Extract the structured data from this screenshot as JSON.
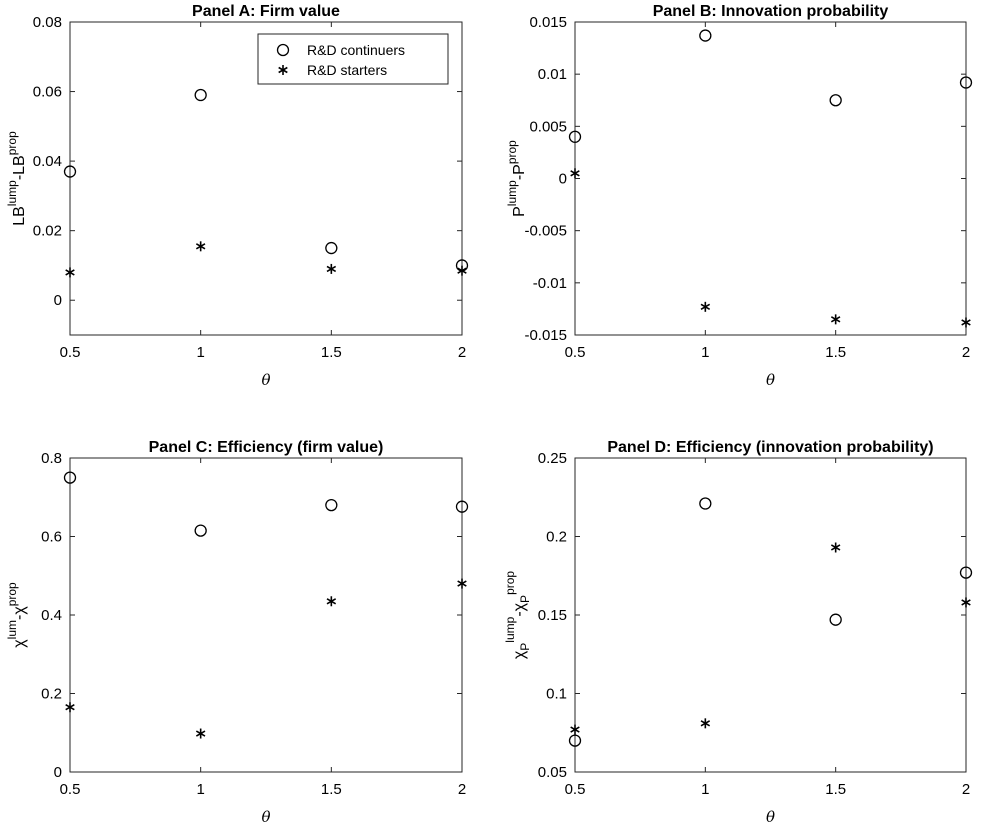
{
  "chart_data": [
    {
      "type": "scatter",
      "title": "Panel A: Firm value",
      "xlabel": "θ",
      "ylabel": {
        "base": "LB",
        "sup1": "lump",
        "mid": "-LB",
        "sup2": "prop"
      },
      "xlim": [
        0.5,
        2
      ],
      "ylim": [
        -0.01,
        0.08
      ],
      "xticks": [
        0.5,
        1,
        1.5,
        2
      ],
      "xtick_labels": [
        "0.5",
        "1",
        "1.5",
        "2"
      ],
      "yticks": [
        0,
        0.02,
        0.04,
        0.06,
        0.08
      ],
      "ytick_labels": [
        "0",
        "0.02",
        "0.04",
        "0.06",
        "0.08"
      ],
      "x": [
        0.5,
        1,
        1.5,
        2
      ],
      "series": [
        {
          "name": "R&D continuers",
          "marker": "circle",
          "values": [
            0.037,
            0.059,
            0.015,
            0.01
          ]
        },
        {
          "name": "R&D starters",
          "marker": "asterisk",
          "values": [
            0.008,
            0.0155,
            0.009,
            0.0085
          ]
        }
      ],
      "legend": "top-right"
    },
    {
      "type": "scatter",
      "title": "Panel B: Innovation probability",
      "xlabel": "θ",
      "ylabel": {
        "base": "P",
        "sup1": "lump",
        "mid": "-P",
        "sup2": "prop"
      },
      "xlim": [
        0.5,
        2
      ],
      "ylim": [
        -0.015,
        0.015
      ],
      "xticks": [
        0.5,
        1,
        1.5,
        2
      ],
      "xtick_labels": [
        "0.5",
        "1",
        "1.5",
        "2"
      ],
      "yticks": [
        -0.015,
        -0.01,
        -0.005,
        0,
        0.005,
        0.01,
        0.015
      ],
      "ytick_labels": [
        "-0.015",
        "-0.01",
        "-0.005",
        "0",
        "0.005",
        "0.01",
        "0.015"
      ],
      "x": [
        0.5,
        1,
        1.5,
        2
      ],
      "series": [
        {
          "name": "R&D continuers",
          "marker": "circle",
          "values": [
            0.004,
            0.0137,
            0.0075,
            0.0092
          ]
        },
        {
          "name": "R&D starters",
          "marker": "asterisk",
          "values": [
            0.0005,
            -0.0123,
            -0.0135,
            -0.0138
          ]
        }
      ]
    },
    {
      "type": "scatter",
      "title": "Panel C: Efficiency (firm value)",
      "xlabel": "θ",
      "ylabel": {
        "base": "χ",
        "sup1": "lum",
        "mid": "-χ",
        "sup2": "prop"
      },
      "xlim": [
        0.5,
        2
      ],
      "ylim": [
        0,
        0.8
      ],
      "xticks": [
        0.5,
        1,
        1.5,
        2
      ],
      "xtick_labels": [
        "0.5",
        "1",
        "1.5",
        "2"
      ],
      "yticks": [
        0,
        0.2,
        0.4,
        0.6,
        0.8
      ],
      "ytick_labels": [
        "0",
        "0.2",
        "0.4",
        "0.6",
        "0.8"
      ],
      "x": [
        0.5,
        1,
        1.5,
        2
      ],
      "series": [
        {
          "name": "R&D continuers",
          "marker": "circle",
          "values": [
            0.75,
            0.615,
            0.68,
            0.676
          ]
        },
        {
          "name": "R&D starters",
          "marker": "asterisk",
          "values": [
            0.165,
            0.098,
            0.435,
            0.48
          ]
        }
      ]
    },
    {
      "type": "scatter",
      "title": "Panel D: Efficiency (innovation probability)",
      "xlabel": "θ",
      "ylabel": {
        "base": "χ",
        "sub": "P",
        "sup1": "lump",
        "mid": "-χ",
        "sub2": "P",
        "sup2": "prop"
      },
      "xlim": [
        0.5,
        2
      ],
      "ylim": [
        0.05,
        0.25
      ],
      "xticks": [
        0.5,
        1,
        1.5,
        2
      ],
      "xtick_labels": [
        "0.5",
        "1",
        "1.5",
        "2"
      ],
      "yticks": [
        0.05,
        0.1,
        0.15,
        0.2,
        0.25
      ],
      "ytick_labels": [
        "0.05",
        "0.1",
        "0.15",
        "0.2",
        "0.25"
      ],
      "x": [
        0.5,
        1,
        1.5,
        2
      ],
      "series": [
        {
          "name": "R&D continuers",
          "marker": "circle",
          "values": [
            0.07,
            0.221,
            0.147,
            0.177
          ]
        },
        {
          "name": "R&D starters",
          "marker": "asterisk",
          "values": [
            0.077,
            0.081,
            0.193,
            0.158
          ]
        }
      ]
    }
  ]
}
